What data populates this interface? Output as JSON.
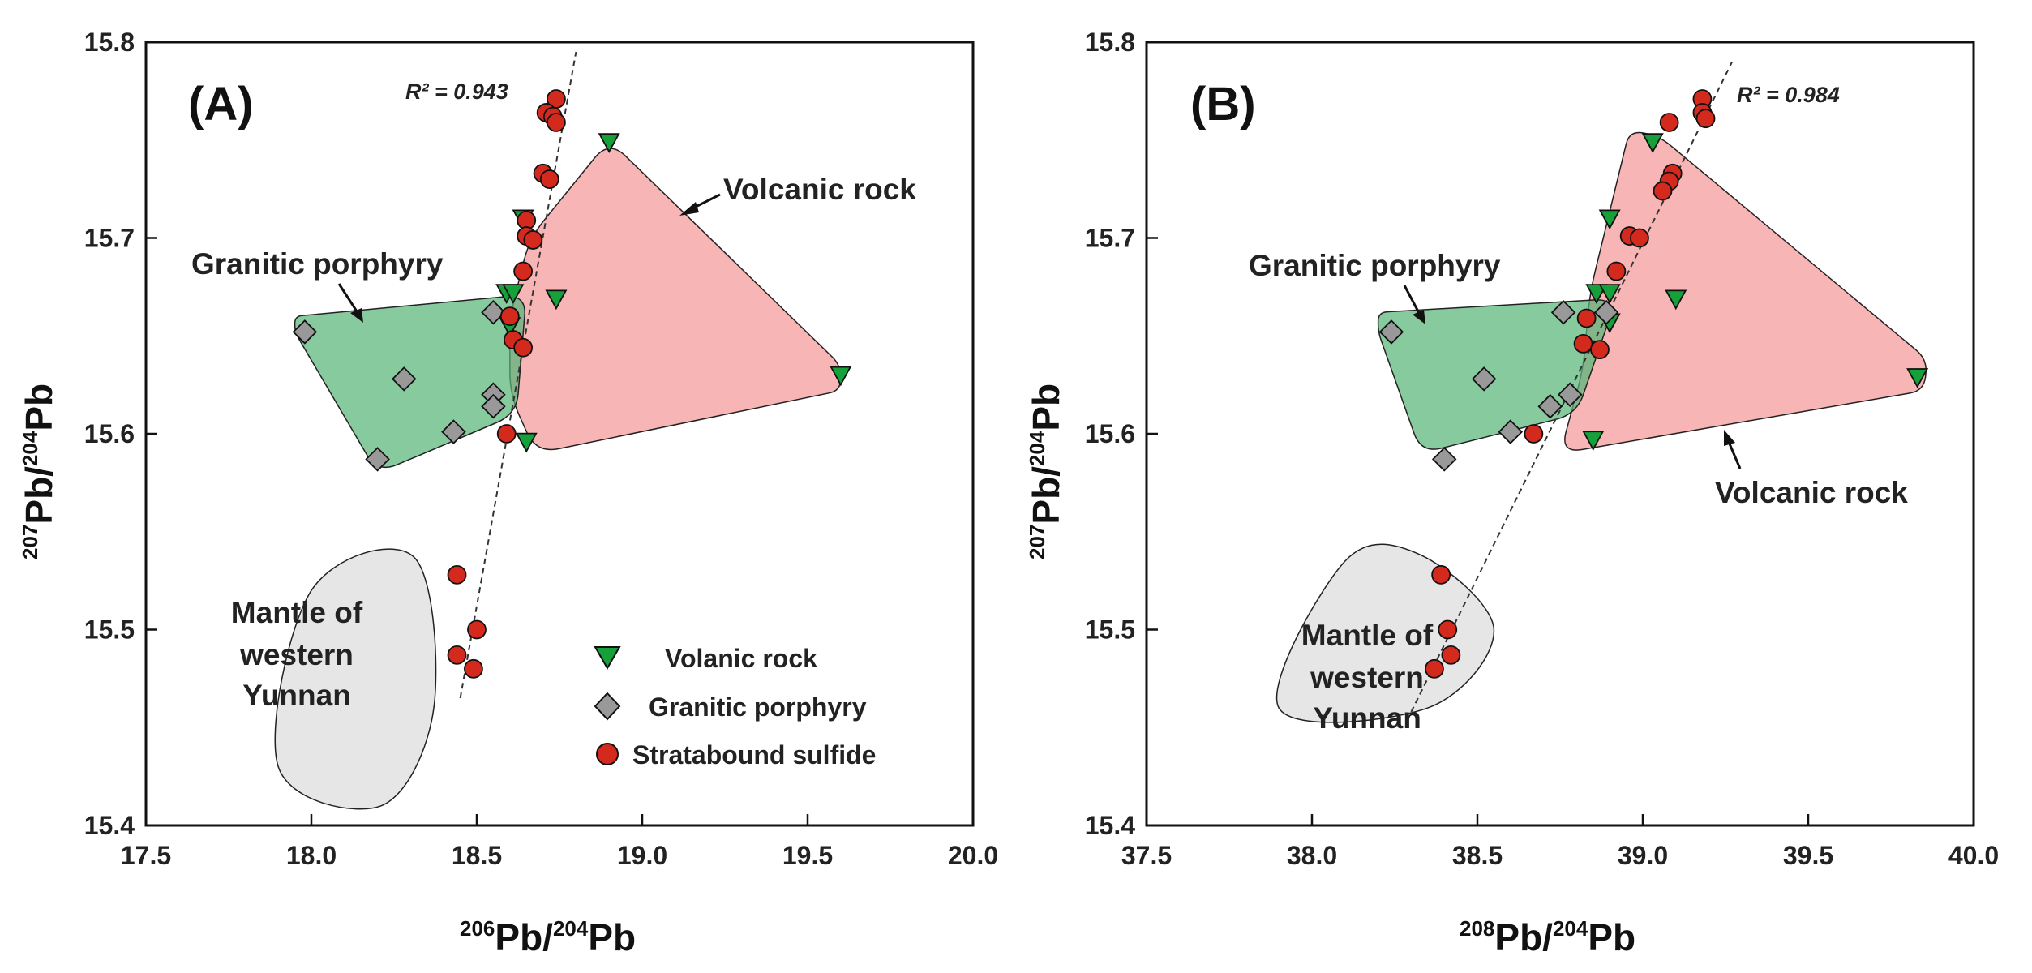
{
  "colors": {
    "volcanic_fill": "#f8b5b5",
    "granitic_fill": "#57b578",
    "mantle_fill": "#e6e6e6",
    "triangle": "#15a03a",
    "diamond": "#999999",
    "circle": "#d42a1e"
  },
  "legend": {
    "volcanic": "Volanic rock",
    "granitic": "Granitic porphyry",
    "sulfide": "Stratabound sulfide"
  },
  "chart_data": [
    {
      "type": "scatter",
      "panel": "(A)",
      "xlabel": "206Pb/204Pb",
      "ylabel": "207Pb/204Pb",
      "xlabel_parts": {
        "sup1": "206",
        "base1": "Pb/",
        "sup2": "204",
        "base2": "Pb"
      },
      "ylabel_parts": {
        "sup1": "207",
        "base1": "Pb/",
        "sup2": "204",
        "base2": "Pb"
      },
      "xlim": [
        17.5,
        20.0
      ],
      "ylim": [
        15.4,
        15.8
      ],
      "xticks": [
        "17.5",
        "18.0",
        "18.5",
        "19.0",
        "19.5",
        "20.0"
      ],
      "yticks": [
        "15.4",
        "15.5",
        "15.6",
        "15.7",
        "15.8"
      ],
      "r2": "R² = 0.943",
      "fit_line": [
        [
          18.45,
          15.465
        ],
        [
          18.8,
          15.795
        ]
      ],
      "labels": {
        "volcanic": "Volcanic rock",
        "granitic": "Granitic porphyry",
        "mantle": [
          "Mantle of",
          "western",
          "Yunnan"
        ]
      },
      "fields": {
        "volcanic": [
          [
            18.66,
            15.7
          ],
          [
            18.9,
            15.75
          ],
          [
            19.6,
            15.635
          ],
          [
            19.6,
            15.622
          ],
          [
            18.68,
            15.59
          ],
          [
            18.6,
            15.62
          ],
          [
            18.6,
            15.66
          ]
        ],
        "granitic": [
          [
            17.95,
            15.66
          ],
          [
            18.65,
            15.671
          ],
          [
            18.62,
            15.61
          ],
          [
            18.2,
            15.58
          ],
          [
            17.95,
            15.652
          ]
        ],
        "mantle": [
          [
            18.0,
            15.52
          ],
          [
            18.31,
            15.537
          ],
          [
            18.37,
            15.46
          ],
          [
            18.21,
            15.41
          ],
          [
            17.9,
            15.43
          ]
        ]
      },
      "series": [
        {
          "name": "Volanic rock",
          "marker": "triangle",
          "points": [
            [
              18.9,
              15.749
            ],
            [
              18.64,
              15.71
            ],
            [
              18.59,
              15.672
            ],
            [
              18.61,
              15.672
            ],
            [
              18.74,
              15.669
            ],
            [
              18.6,
              15.655
            ],
            [
              19.6,
              15.63
            ],
            [
              18.65,
              15.596
            ]
          ]
        },
        {
          "name": "Granitic porphyry",
          "marker": "diamond",
          "points": [
            [
              17.98,
              15.652
            ],
            [
              18.55,
              15.662
            ],
            [
              18.28,
              15.628
            ],
            [
              18.55,
              15.62
            ],
            [
              18.55,
              15.614
            ],
            [
              18.43,
              15.601
            ],
            [
              18.2,
              15.587
            ]
          ]
        },
        {
          "name": "Stratabound sulfide",
          "marker": "circle",
          "points": [
            [
              18.74,
              15.771
            ],
            [
              18.71,
              15.764
            ],
            [
              18.73,
              15.762
            ],
            [
              18.74,
              15.759
            ],
            [
              18.7,
              15.733
            ],
            [
              18.72,
              15.73
            ],
            [
              18.65,
              15.709
            ],
            [
              18.65,
              15.701
            ],
            [
              18.67,
              15.699
            ],
            [
              18.64,
              15.683
            ],
            [
              18.6,
              15.66
            ],
            [
              18.61,
              15.648
            ],
            [
              18.64,
              15.644
            ],
            [
              18.59,
              15.6
            ],
            [
              18.44,
              15.528
            ],
            [
              18.5,
              15.5
            ],
            [
              18.44,
              15.487
            ],
            [
              18.49,
              15.48
            ]
          ]
        }
      ]
    },
    {
      "type": "scatter",
      "panel": "(B)",
      "xlabel": "208Pb/204Pb",
      "ylabel": "207Pb/204Pb",
      "xlabel_parts": {
        "sup1": "208",
        "base1": "Pb/",
        "sup2": "204",
        "base2": "Pb"
      },
      "ylabel_parts": {
        "sup1": "207",
        "base1": "Pb/",
        "sup2": "204",
        "base2": "Pb"
      },
      "xlim": [
        37.5,
        40.0
      ],
      "ylim": [
        15.4,
        15.8
      ],
      "xticks": [
        "37.5",
        "38.0",
        "38.5",
        "39.0",
        "39.5",
        "40.0"
      ],
      "yticks": [
        "15.4",
        "15.5",
        "15.6",
        "15.7",
        "15.8"
      ],
      "r2": "R² = 0.984",
      "fit_line": [
        [
          38.3,
          15.458
        ],
        [
          39.27,
          15.79
        ]
      ],
      "labels": {
        "volcanic": "Volcanic rock",
        "granitic": "Granitic porphyry",
        "mantle": [
          "Mantle of",
          "western",
          "Yunnan"
        ]
      },
      "fields": {
        "volcanic": [
          [
            38.84,
            15.672
          ],
          [
            38.96,
            15.755
          ],
          [
            39.05,
            15.752
          ],
          [
            39.86,
            15.638
          ],
          [
            39.85,
            15.622
          ],
          [
            38.75,
            15.59
          ],
          [
            38.82,
            15.633
          ]
        ],
        "granitic": [
          [
            38.2,
            15.662
          ],
          [
            38.92,
            15.669
          ],
          [
            38.8,
            15.61
          ],
          [
            38.33,
            15.59
          ],
          [
            38.2,
            15.652
          ]
        ],
        "mantle": [
          [
            38.1,
            15.535
          ],
          [
            38.33,
            15.538
          ],
          [
            38.55,
            15.5
          ],
          [
            38.35,
            15.46
          ],
          [
            37.9,
            15.46
          ]
        ]
      },
      "series": [
        {
          "name": "Volanic rock",
          "marker": "triangle",
          "points": [
            [
              39.03,
              15.749
            ],
            [
              38.9,
              15.71
            ],
            [
              38.86,
              15.672
            ],
            [
              38.9,
              15.672
            ],
            [
              39.1,
              15.669
            ],
            [
              38.9,
              15.657
            ],
            [
              39.83,
              15.629
            ],
            [
              38.85,
              15.597
            ]
          ]
        },
        {
          "name": "Granitic porphyry",
          "marker": "diamond",
          "points": [
            [
              38.24,
              15.652
            ],
            [
              38.76,
              15.662
            ],
            [
              38.89,
              15.662
            ],
            [
              38.52,
              15.628
            ],
            [
              38.78,
              15.62
            ],
            [
              38.72,
              15.614
            ],
            [
              38.6,
              15.601
            ],
            [
              38.4,
              15.587
            ]
          ]
        },
        {
          "name": "Stratabound sulfide",
          "marker": "circle",
          "points": [
            [
              39.18,
              15.771
            ],
            [
              39.18,
              15.764
            ],
            [
              39.19,
              15.761
            ],
            [
              39.08,
              15.759
            ],
            [
              39.09,
              15.733
            ],
            [
              39.08,
              15.729
            ],
            [
              39.06,
              15.724
            ],
            [
              38.96,
              15.701
            ],
            [
              38.99,
              15.7
            ],
            [
              38.92,
              15.683
            ],
            [
              38.83,
              15.659
            ],
            [
              38.82,
              15.646
            ],
            [
              38.87,
              15.643
            ],
            [
              38.67,
              15.6
            ],
            [
              38.39,
              15.528
            ],
            [
              38.41,
              15.5
            ],
            [
              38.42,
              15.487
            ],
            [
              38.37,
              15.48
            ]
          ]
        }
      ]
    }
  ]
}
